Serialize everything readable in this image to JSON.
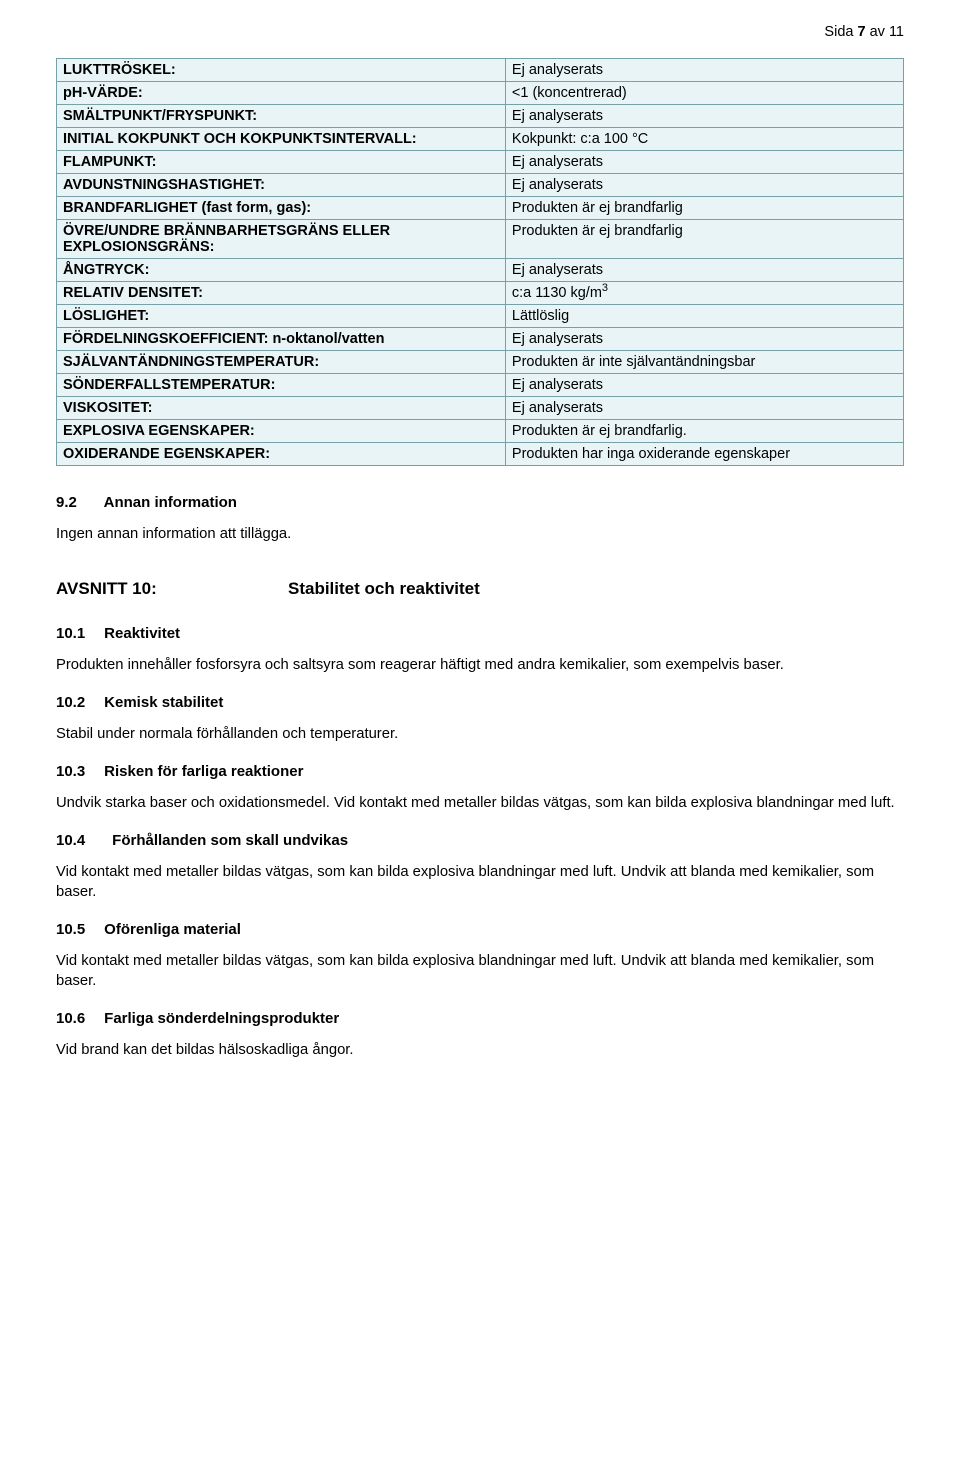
{
  "page_indicator": {
    "prefix": "Sida ",
    "current": "7",
    "mid": " av ",
    "total": "11"
  },
  "table": {
    "rows": [
      {
        "label": "LUKTTRÖSKEL:",
        "value": "Ej analyserats"
      },
      {
        "label": "pH-VÄRDE:",
        "value": "<1 (koncentrerad)"
      },
      {
        "label": "SMÄLTPUNKT/FRYSPUNKT:",
        "value": "Ej analyserats"
      },
      {
        "label": "INITIAL KOKPUNKT OCH KOKPUNKTSINTERVALL:",
        "value": "Kokpunkt: c:a 100 °C"
      },
      {
        "label": "FLAMPUNKT:",
        "value": "Ej analyserats"
      },
      {
        "label": "AVDUNSTNINGSHASTIGHET:",
        "value": "Ej analyserats"
      },
      {
        "label": "BRANDFARLIGHET (fast form, gas):",
        "value": "Produkten är ej brandfarlig"
      },
      {
        "label": "ÖVRE/UNDRE BRÄNNBARHETSGRÄNS ELLER EXPLOSIONSGRÄNS:",
        "value": "Produkten är ej brandfarlig"
      },
      {
        "label": "ÅNGTRYCK:",
        "value": "Ej analyserats"
      },
      {
        "label": "RELATIV DENSITET:",
        "value": "c:a 1130 kg/m",
        "value_sup": "3"
      },
      {
        "label": "LÖSLIGHET:",
        "value": "Lättlöslig"
      },
      {
        "label": "FÖRDELNINGSKOEFFICIENT: n-oktanol/vatten",
        "value": "Ej analyserats"
      },
      {
        "label": "SJÄLVANTÄNDNINGSTEMPERATUR:",
        "value": "Produkten är inte självantändningsbar"
      },
      {
        "label": "SÖNDERFALLSTEMPERATUR:",
        "value": "Ej analyserats"
      },
      {
        "label": "VISKOSITET:",
        "value": "Ej analyserats"
      },
      {
        "label": "EXPLOSIVA EGENSKAPER:",
        "value": "Produkten är ej brandfarlig."
      },
      {
        "label": "OXIDERANDE EGENSKAPER:",
        "value": "Produkten har inga oxiderande egenskaper"
      }
    ]
  },
  "sec9_2": {
    "num": "9.2",
    "title": "Annan information",
    "body": "Ingen annan information att tillägga."
  },
  "sec10": {
    "label": "AVSNITT 10:",
    "title": "Stabilitet och reaktivitet"
  },
  "sec10_1": {
    "num": "10.1",
    "title": "Reaktivitet",
    "body": "Produkten innehåller fosforsyra och saltsyra som reagerar häftigt med andra kemikalier, som exempelvis baser."
  },
  "sec10_2": {
    "num": "10.2",
    "title": "Kemisk stabilitet",
    "body": "Stabil under normala förhållanden och temperaturer."
  },
  "sec10_3": {
    "num": "10.3",
    "title": "Risken för farliga reaktioner",
    "body": "Undvik starka baser och oxidationsmedel. Vid kontakt med metaller bildas vätgas, som kan bilda explosiva blandningar med luft."
  },
  "sec10_4": {
    "num": "10.4",
    "title": "Förhållanden som skall undvikas",
    "body": "Vid kontakt med metaller bildas vätgas, som kan bilda explosiva blandningar med luft. Undvik att blanda med kemikalier, som baser."
  },
  "sec10_5": {
    "num": "10.5",
    "title": "Oförenliga material",
    "body": "Vid kontakt med metaller bildas vätgas, som kan bilda explosiva blandningar med luft. Undvik att blanda med kemikalier, som baser."
  },
  "sec10_6": {
    "num": "10.6",
    "title": "Farliga sönderdelningsprodukter",
    "body": "Vid brand kan det bildas hälsoskadliga ångor."
  }
}
